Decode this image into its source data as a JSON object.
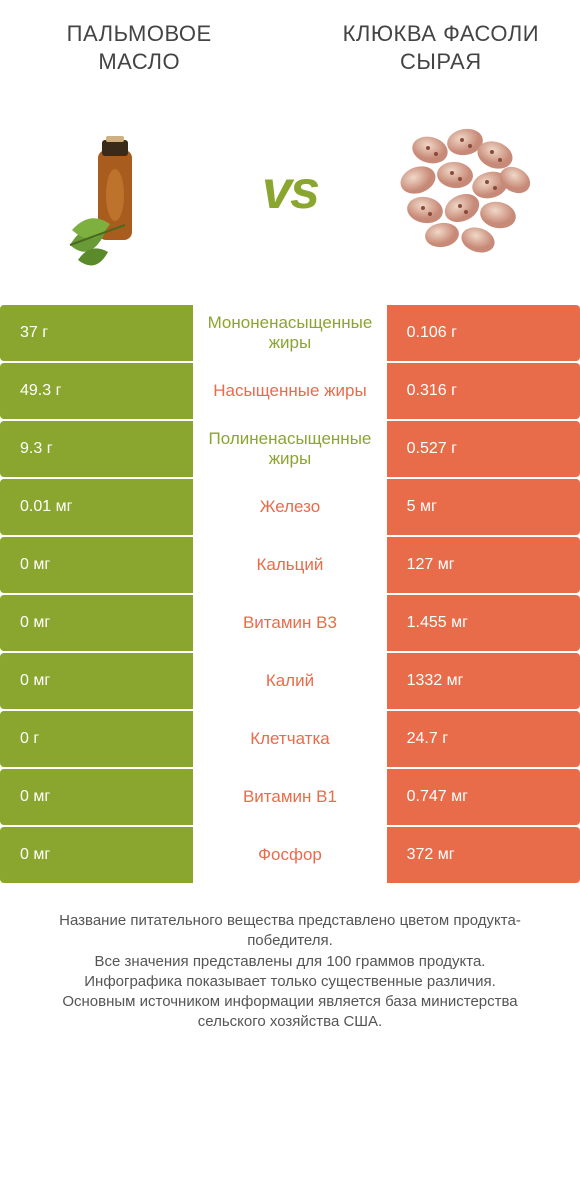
{
  "colors": {
    "green": "#8aa62f",
    "orange": "#e86c4a"
  },
  "header": {
    "left": "Пальмовое масло",
    "right": "Клюква фасоли сырая"
  },
  "vs": "vs",
  "rows": [
    {
      "left": "37 г",
      "label": "Мононенасыщенные жиры",
      "right": "0.106 г",
      "winner": "green"
    },
    {
      "left": "49.3 г",
      "label": "Насыщенные жиры",
      "right": "0.316 г",
      "winner": "orange"
    },
    {
      "left": "9.3 г",
      "label": "Полиненасыщенные жиры",
      "right": "0.527 г",
      "winner": "green"
    },
    {
      "left": "0.01 мг",
      "label": "Железо",
      "right": "5 мг",
      "winner": "orange"
    },
    {
      "left": "0 мг",
      "label": "Кальций",
      "right": "127 мг",
      "winner": "orange"
    },
    {
      "left": "0 мг",
      "label": "Витамин B3",
      "right": "1.455 мг",
      "winner": "orange"
    },
    {
      "left": "0 мг",
      "label": "Калий",
      "right": "1332 мг",
      "winner": "orange"
    },
    {
      "left": "0 г",
      "label": "Клетчатка",
      "right": "24.7 г",
      "winner": "orange"
    },
    {
      "left": "0 мг",
      "label": "Витамин B1",
      "right": "0.747 мг",
      "winner": "orange"
    },
    {
      "left": "0 мг",
      "label": "Фосфор",
      "right": "372 мг",
      "winner": "orange"
    }
  ],
  "footer": "Название питательного вещества представлено цветом продукта-победителя.\nВсе значения представлены для 100 граммов продукта.\nИнфографика показывает только существенные различия.\nОсновным источником информации является база министерства сельского хозяйства США."
}
